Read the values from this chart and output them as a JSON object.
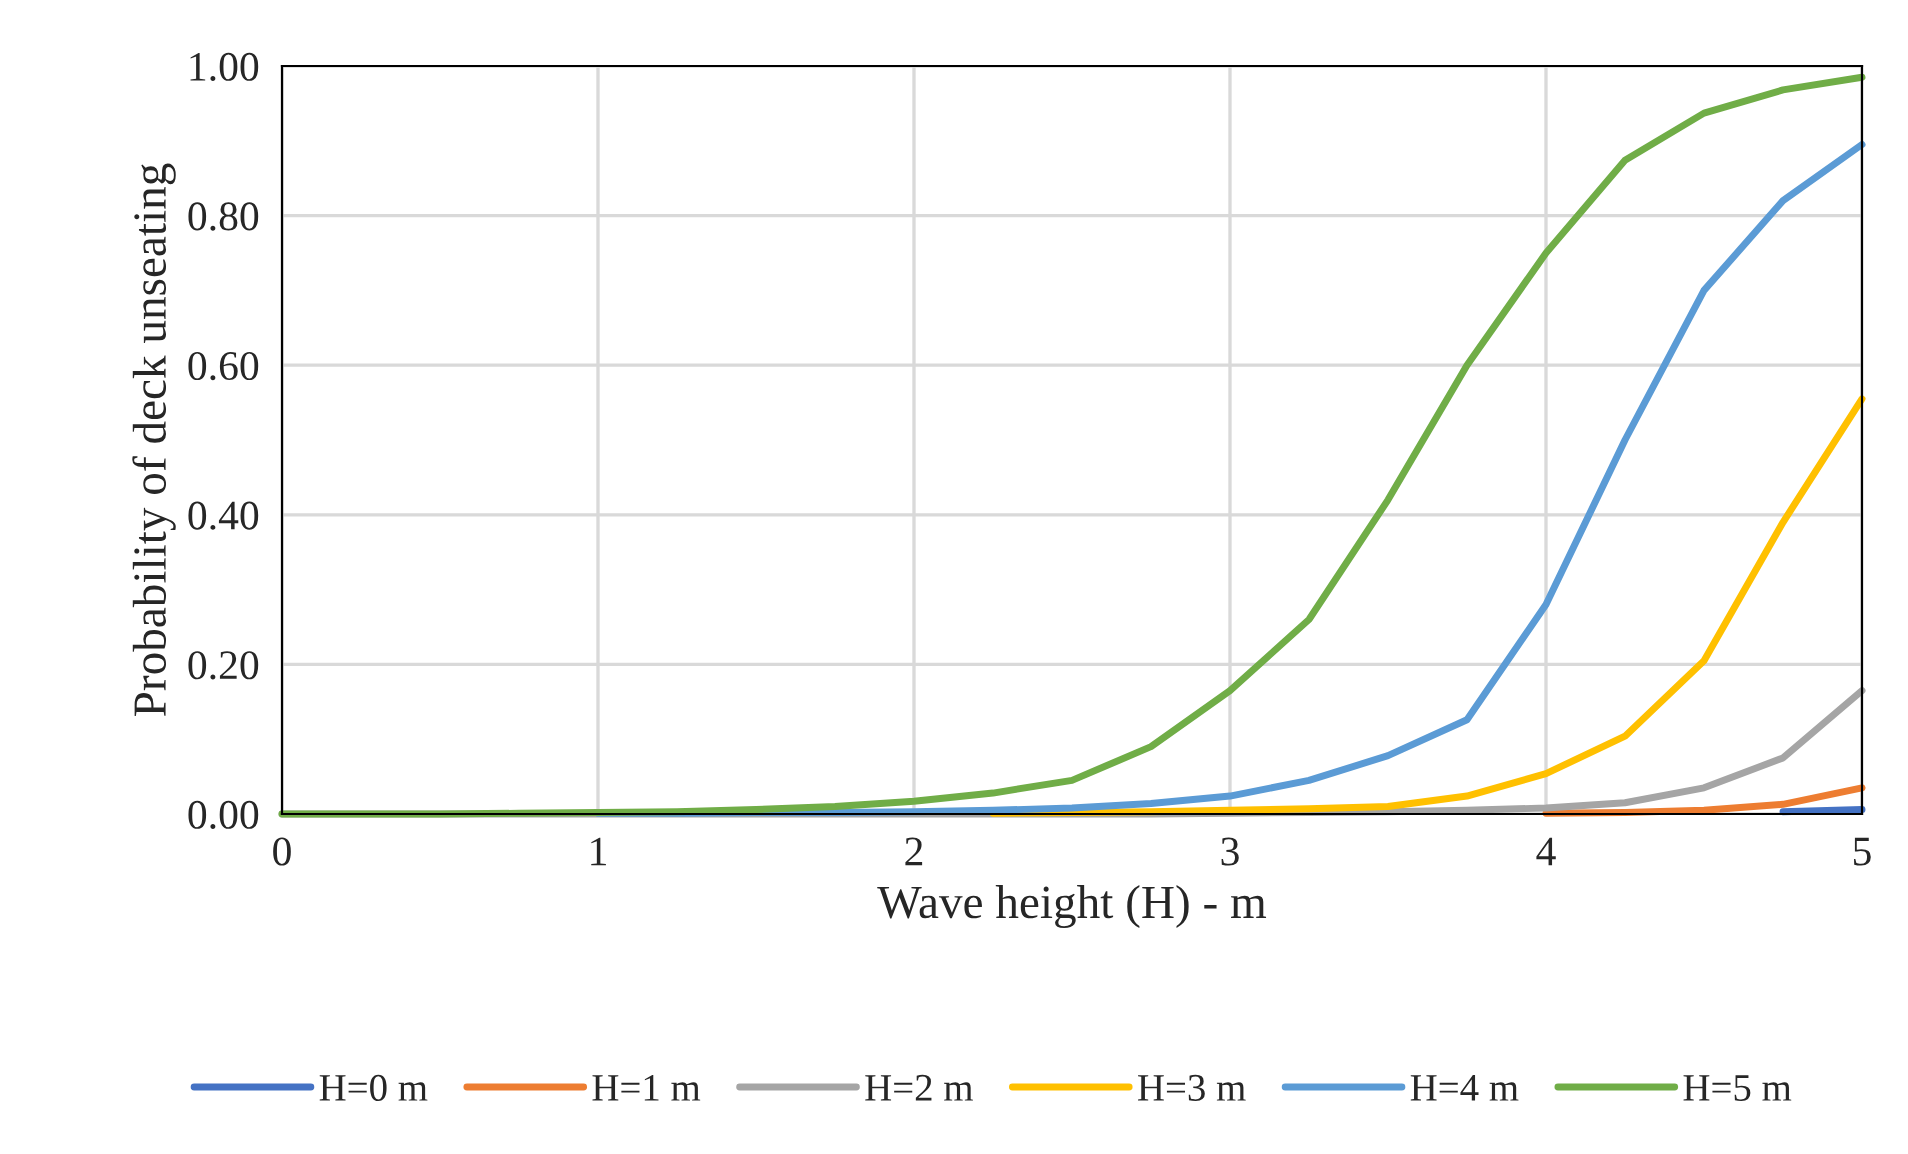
{
  "chart_data": {
    "type": "line",
    "xlabel": "Wave height (H) - m",
    "ylabel": "Probability of deck unseating",
    "x": [
      0,
      0.25,
      0.5,
      0.75,
      1,
      1.25,
      1.5,
      1.75,
      2,
      2.25,
      2.5,
      2.75,
      3,
      3.25,
      3.5,
      3.75,
      4,
      4.25,
      4.5,
      4.75,
      5
    ],
    "series": [
      {
        "name": "H=0 m",
        "color": "#4472c4",
        "values": [
          null,
          null,
          null,
          null,
          null,
          null,
          null,
          null,
          null,
          null,
          null,
          null,
          null,
          null,
          null,
          null,
          null,
          null,
          null,
          0.003,
          0.006
        ]
      },
      {
        "name": "H=1 m",
        "color": "#ed7d31",
        "values": [
          null,
          null,
          null,
          null,
          null,
          null,
          null,
          null,
          null,
          null,
          null,
          null,
          null,
          null,
          null,
          null,
          0.001,
          0.002,
          0.005,
          0.013,
          0.035
        ]
      },
      {
        "name": "H=2 m",
        "color": "#a5a5a5",
        "values": [
          0,
          0,
          0,
          0,
          0,
          0,
          0,
          0,
          0,
          0,
          0,
          0,
          0.001,
          0.002,
          0.003,
          0.005,
          0.008,
          0.015,
          0.035,
          0.075,
          0.165
        ]
      },
      {
        "name": "H=3 m",
        "color": "#ffc000",
        "values": [
          null,
          null,
          null,
          null,
          null,
          null,
          null,
          null,
          null,
          0.001,
          0.002,
          0.003,
          0.005,
          0.007,
          0.01,
          0.024,
          0.054,
          0.104,
          0.205,
          0.39,
          0.555
        ]
      },
      {
        "name": "H=4 m",
        "color": "#5b9bd5",
        "values": [
          null,
          null,
          null,
          null,
          0.001,
          0.001,
          0.002,
          0.002,
          0.003,
          0.005,
          0.008,
          0.014,
          0.024,
          0.045,
          0.078,
          0.126,
          0.28,
          0.5,
          0.7,
          0.82,
          0.895
        ]
      },
      {
        "name": "H=5 m",
        "color": "#70ad47",
        "values": [
          0,
          0,
          0,
          0.001,
          0.002,
          0.003,
          0.006,
          0.01,
          0.017,
          0.028,
          0.045,
          0.09,
          0.165,
          0.26,
          0.42,
          0.6,
          0.75,
          0.874,
          0.937,
          0.968,
          0.985
        ]
      }
    ],
    "xlim": [
      0,
      5
    ],
    "xticks": [
      0,
      1,
      2,
      3,
      4,
      5
    ],
    "ylim": [
      0,
      1
    ],
    "yticks": [
      {
        "value": 0,
        "label": "0.00"
      },
      {
        "value": 0.2,
        "label": "0.20"
      },
      {
        "value": 0.4,
        "label": "0.40"
      },
      {
        "value": 0.6,
        "label": "0.60"
      },
      {
        "value": 0.8,
        "label": "0.80"
      },
      {
        "value": 1,
        "label": "1.00"
      }
    ],
    "grid": true,
    "legend": "bottom",
    "marker": "none",
    "line_style": "solid"
  }
}
